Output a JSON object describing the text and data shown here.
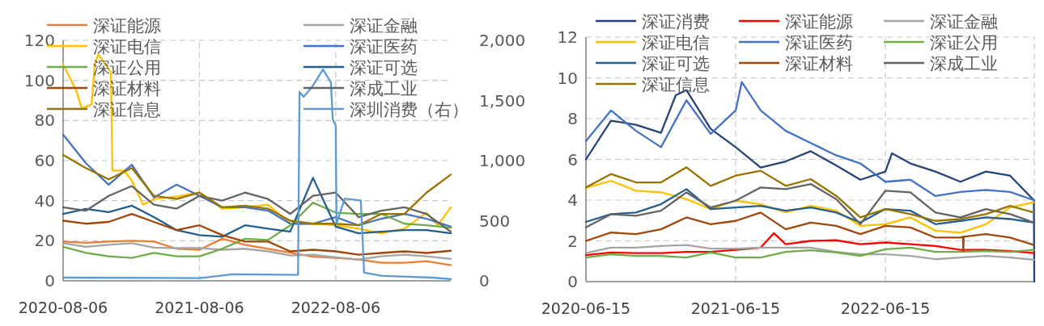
{
  "chart_data": [
    {
      "type": "line",
      "grid": true,
      "legend": "top",
      "x": [
        "2020-08-06",
        "2020-10-06",
        "2020-12-06",
        "2021-02-06",
        "2021-04-06",
        "2021-06-06",
        "2021-08-06",
        "2021-10-06",
        "2021-12-06",
        "2022-02-06",
        "2022-04-06",
        "2022-06-06",
        "2022-08-06",
        "2022-10-06",
        "2022-12-06",
        "2023-02-06",
        "2023-04-06",
        "2023-06-10"
      ],
      "xlim": [
        "2020-08-06",
        "2023-06-10"
      ],
      "xticks": [
        "2020-08-06",
        "2021-08-06",
        "2022-08-06"
      ],
      "ylim": [
        0,
        120
      ],
      "yticks": [
        0,
        20,
        40,
        60,
        80,
        100,
        120
      ],
      "y2lim": [
        0,
        2000
      ],
      "y2ticks": [
        0,
        500,
        {
          "value": 1000,
          "label": "1,000"
        },
        {
          "value": 1500,
          "label": "1,500"
        },
        {
          "value": 2000,
          "label": "2,000"
        }
      ],
      "series": [
        {
          "name": "深证能源",
          "color": "#ed7d31",
          "values": [
            19.6,
            19,
            19.6,
            20,
            19.6,
            16,
            15.5,
            21,
            18,
            16,
            14,
            12,
            11.4,
            10.6,
            9,
            9,
            9.8,
            7.8
          ]
        },
        {
          "name": "深证金融",
          "color": "#a5a5a5",
          "values": [
            18.8,
            17,
            18,
            18.8,
            16.6,
            16.3,
            16.3,
            15.5,
            16,
            14.7,
            12.6,
            13,
            11.7,
            10.6,
            12.2,
            13,
            12.2,
            10.9
          ]
        },
        {
          "name": "深证电信",
          "color": "#ffc000",
          "x": [
            "2020-08-06",
            "2020-09-10",
            "2020-09-25",
            "2020-10-21",
            "2020-10-30",
            "2020-11-08",
            "2020-12-12",
            "2020-12-16",
            "2021-01-16",
            "2021-02-06",
            "2021-03-08",
            "2021-04-06",
            "2021-06-06",
            "2021-08-06",
            "2021-10-06",
            "2021-12-06",
            "2022-02-06",
            "2022-04-06",
            "2022-06-06",
            "2022-08-06",
            "2022-10-06",
            "2022-12-06",
            "2023-02-06",
            "2023-04-06",
            "2023-05-06",
            "2023-06-10"
          ],
          "values": [
            108,
            95,
            86,
            88,
            108,
            113,
            104,
            55,
            55,
            50,
            38,
            40.8,
            42,
            44,
            36,
            36.7,
            38,
            28.5,
            28.5,
            27.7,
            26,
            23.7,
            26,
            34,
            27.7,
            36.7
          ]
        },
        {
          "name": "深证医药",
          "color": "#4472c4",
          "values": [
            73,
            58.7,
            48,
            57.9,
            41.6,
            48,
            42.4,
            36.7,
            36.7,
            35,
            28.5,
            28.5,
            31.8,
            27.7,
            31,
            33.4,
            31,
            27
          ]
        },
        {
          "name": "深证公用",
          "color": "#70ad47",
          "values": [
            17,
            13.9,
            12.2,
            11.4,
            13.9,
            12.2,
            12.2,
            16,
            21,
            20.4,
            27.7,
            39,
            34,
            33.4,
            33.4,
            28.5,
            27.7,
            26.4
          ]
        },
        {
          "name": "深证可选",
          "color": "#255e91",
          "values": [
            33.4,
            35.9,
            34.3,
            37.5,
            31.8,
            25.3,
            22.8,
            22,
            27.7,
            26,
            24.5,
            51.4,
            27,
            23.7,
            24.5,
            25.3,
            25.3,
            23.7
          ]
        },
        {
          "name": "深证材料",
          "color": "#9e480e",
          "values": [
            30,
            28.5,
            29.4,
            33.4,
            29.4,
            25.3,
            27.7,
            22.8,
            19.6,
            19.6,
            14.7,
            15.5,
            14.7,
            13,
            13.9,
            14.7,
            13.9,
            15
          ]
        },
        {
          "name": "深成工业",
          "color": "#636363",
          "values": [
            36.7,
            35,
            42.4,
            47.3,
            38,
            36,
            42.4,
            40,
            44,
            40.8,
            33.4,
            42.4,
            44,
            31.8,
            35,
            36.7,
            33.4,
            24.5
          ]
        },
        {
          "name": "深证信息",
          "color": "#997300",
          "values": [
            62.8,
            56.3,
            50.6,
            56.3,
            42.4,
            40.8,
            44,
            36.7,
            37.5,
            36,
            30,
            28.5,
            28.5,
            27.7,
            33.4,
            33.4,
            44,
            53
          ]
        },
        {
          "name": "深圳消费（右）",
          "color": "#5b9bd5",
          "axis": "y2",
          "x": [
            "2020-08-06",
            "2021-08-06",
            "2021-11-03",
            "2022-04-27",
            "2022-05-01",
            "2022-05-12",
            "2022-06-03",
            "2022-07-03",
            "2022-07-24",
            "2022-07-29",
            "2022-08-06",
            "2022-08-08",
            "2022-08-30",
            "2022-10-12",
            "2022-10-21",
            "2022-12-08",
            "2023-04-21",
            "2023-06-10"
          ],
          "values": [
            27,
            22,
            55,
            49,
            1570,
            1530,
            1610,
            1758,
            1650,
            1342,
            1288,
            478,
            683,
            669,
            68,
            41,
            27,
            14
          ]
        }
      ]
    },
    {
      "type": "line",
      "grid": true,
      "legend": "top",
      "x": [
        "2020-06-15",
        "2020-08-15",
        "2020-10-15",
        "2020-12-15",
        "2021-02-15",
        "2021-04-15",
        "2021-06-15",
        "2021-08-15",
        "2021-10-15",
        "2021-12-15",
        "2022-02-15",
        "2022-04-15",
        "2022-06-15",
        "2022-08-15",
        "2022-10-15",
        "2022-12-15",
        "2023-02-15",
        "2023-04-15",
        "2023-06-12"
      ],
      "xlim": [
        "2020-06-15",
        "2023-06-13"
      ],
      "xticks": [
        "2020-06-15",
        "2021-06-15",
        "2022-06-15"
      ],
      "ylim": [
        0,
        12
      ],
      "yticks": [
        0,
        2,
        4,
        6,
        8,
        10,
        12
      ],
      "series": [
        {
          "name": "深证消费",
          "color": "#264478",
          "x": [
            "2020-06-15",
            "2020-08-15",
            "2020-10-15",
            "2020-12-15",
            "2021-01-20",
            "2021-02-15",
            "2021-04-15",
            "2021-06-15",
            "2021-08-15",
            "2021-10-15",
            "2021-12-15",
            "2022-02-15",
            "2022-04-15",
            "2022-06-15",
            "2022-07-01",
            "2022-08-15",
            "2022-10-15",
            "2022-12-15",
            "2023-02-15",
            "2023-04-15",
            "2023-06-12",
            "2023-06-13"
          ],
          "values": [
            6.0,
            7.9,
            7.7,
            7.3,
            9.15,
            9.4,
            7.5,
            6.6,
            5.6,
            5.9,
            6.4,
            5.7,
            5.0,
            5.4,
            6.3,
            5.8,
            5.4,
            4.9,
            5.4,
            5.2,
            4.0,
            0
          ]
        },
        {
          "name": "深证能源",
          "color": "#ff0000",
          "x": [
            "2020-06-15",
            "2020-08-15",
            "2020-10-15",
            "2020-12-15",
            "2021-02-15",
            "2021-04-15",
            "2021-06-15",
            "2021-08-15",
            "2021-09-16",
            "2021-10-15",
            "2021-12-15",
            "2022-02-15",
            "2022-04-15",
            "2022-06-15",
            "2022-08-15",
            "2022-10-15",
            "2022-12-15",
            "2023-02-15",
            "2023-04-15",
            "2023-06-12"
          ],
          "values": [
            1.3,
            1.43,
            1.4,
            1.4,
            1.46,
            1.46,
            1.56,
            1.67,
            2.38,
            1.84,
            2.0,
            2.03,
            1.84,
            1.92,
            1.84,
            1.75,
            1.56,
            1.56,
            1.5,
            1.4
          ]
        },
        {
          "name": "深证金融",
          "color": "#a5a5a5",
          "values": [
            1.4,
            1.67,
            1.67,
            1.75,
            1.8,
            1.62,
            1.62,
            1.67,
            1.67,
            1.67,
            1.46,
            1.34,
            1.34,
            1.26,
            1.1,
            1.18,
            1.26,
            1.18,
            1.07
          ]
        },
        {
          "name": "深证电信",
          "color": "#ffc000",
          "values": [
            4.6,
            4.95,
            4.46,
            4.38,
            4.05,
            3.56,
            3.97,
            3.8,
            3.4,
            3.72,
            3.48,
            2.74,
            2.82,
            3.15,
            2.5,
            2.4,
            2.82,
            3.64,
            3.9
          ]
        },
        {
          "name": "深证医药",
          "color": "#4472c4",
          "x": [
            "2020-06-15",
            "2020-08-15",
            "2020-10-15",
            "2020-12-15",
            "2021-02-15",
            "2021-04-15",
            "2021-06-15",
            "2021-06-30",
            "2021-08-15",
            "2021-10-15",
            "2021-12-15",
            "2022-02-15",
            "2022-04-15",
            "2022-06-15",
            "2022-08-15",
            "2022-10-15",
            "2022-12-15",
            "2023-02-15",
            "2023-04-15",
            "2023-06-12"
          ],
          "values": [
            6.9,
            8.4,
            7.4,
            6.6,
            8.9,
            7.25,
            8.4,
            9.8,
            8.4,
            7.4,
            6.8,
            6.2,
            5.8,
            4.9,
            5.0,
            4.2,
            4.4,
            4.5,
            4.4,
            4.0
          ]
        },
        {
          "name": "深证公用",
          "color": "#70ad47",
          "values": [
            1.18,
            1.34,
            1.26,
            1.26,
            1.18,
            1.43,
            1.18,
            1.18,
            1.46,
            1.54,
            1.43,
            1.26,
            1.59,
            1.67,
            1.46,
            1.46,
            1.5,
            1.46,
            1.56
          ]
        },
        {
          "name": "深证可选",
          "color": "#255e91",
          "values": [
            2.93,
            3.31,
            3.39,
            3.8,
            4.54,
            3.56,
            3.64,
            3.72,
            3.48,
            3.64,
            3.39,
            2.9,
            3.56,
            3.48,
            2.82,
            2.98,
            3.15,
            3.07,
            2.9
          ]
        },
        {
          "name": "深证材料",
          "color": "#9e480e",
          "x": [
            "2020-06-15",
            "2020-08-15",
            "2020-10-15",
            "2020-12-15",
            "2021-02-15",
            "2021-04-15",
            "2021-06-15",
            "2021-08-15",
            "2021-10-15",
            "2021-12-15",
            "2022-02-15",
            "2022-04-15",
            "2022-06-15",
            "2022-08-15",
            "2022-10-15",
            "2022-12-15",
            "2022-12-21",
            "2022-12-22",
            "2022-12-23",
            "2023-02-15",
            "2023-04-15",
            "2023-06-12"
          ],
          "values": [
            2.0,
            2.41,
            2.33,
            2.57,
            3.15,
            2.82,
            2.98,
            3.39,
            2.57,
            2.9,
            2.74,
            2.33,
            2.74,
            2.66,
            2.16,
            2.16,
            2.2,
            1.5,
            2.2,
            2.33,
            2.16,
            1.8
          ]
        },
        {
          "name": "深成工业",
          "color": "#636363",
          "values": [
            2.66,
            3.31,
            3.23,
            3.48,
            4.38,
            3.64,
            3.97,
            4.62,
            4.54,
            4.79,
            4.05,
            2.82,
            4.46,
            4.38,
            3.39,
            3.15,
            3.56,
            3.31,
            2.9
          ]
        },
        {
          "name": "深证信息",
          "color": "#997300",
          "values": [
            4.62,
            5.28,
            4.87,
            4.87,
            5.61,
            4.7,
            5.2,
            5.44,
            4.7,
            5.03,
            4.21,
            3.15,
            3.56,
            3.31,
            2.98,
            3.07,
            3.31,
            3.72,
            3.39
          ]
        }
      ]
    }
  ]
}
